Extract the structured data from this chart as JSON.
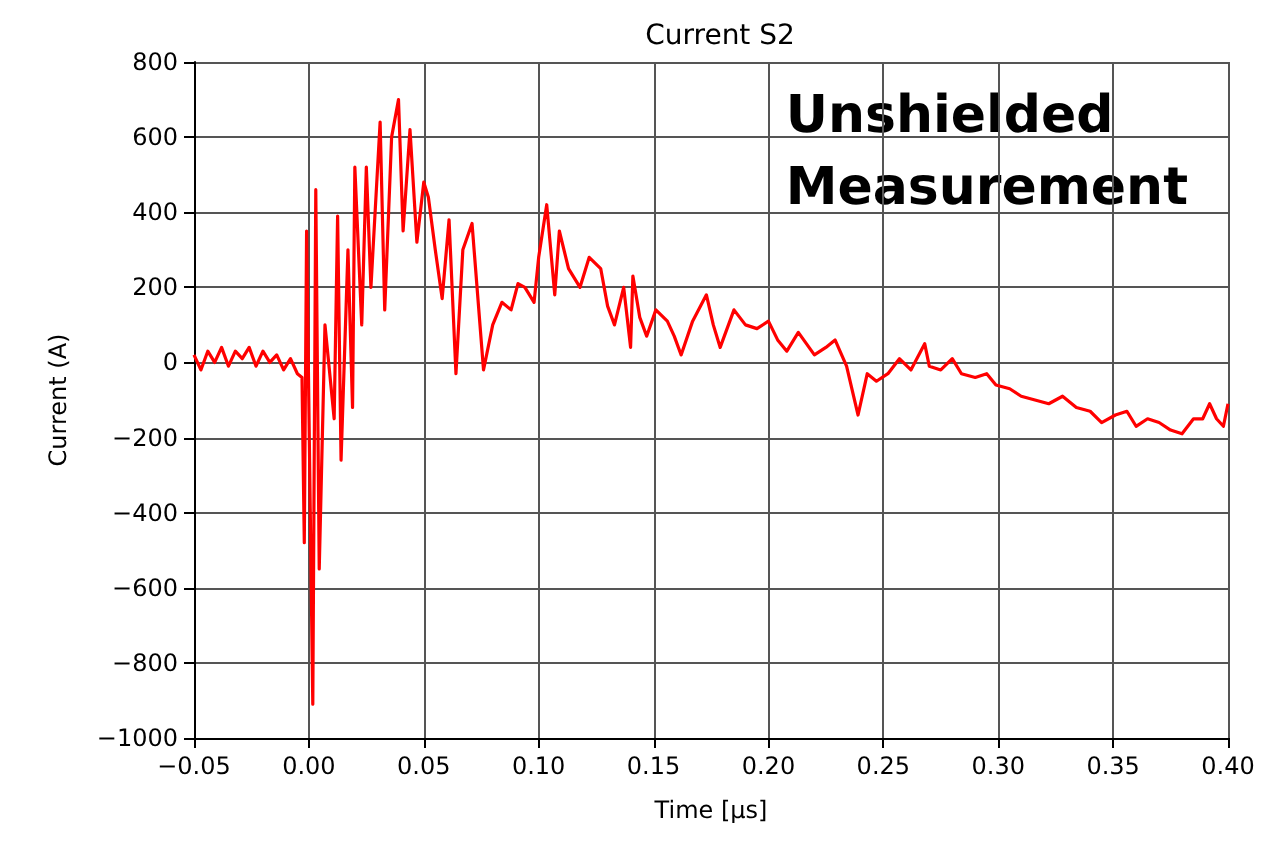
{
  "chart_data": {
    "type": "line",
    "title": "Current S2",
    "xlabel": "Time [μs]",
    "ylabel": "Current (A)",
    "annotations": [
      "Unshielded\nMeasurement"
    ],
    "grid": true,
    "marker": "none",
    "line_style": "solid",
    "xlim": [
      -0.05,
      0.4
    ],
    "ylim": [
      -1000,
      800
    ],
    "xticks": [
      {
        "value": -0.05,
        "label": "−0.05"
      },
      {
        "value": 0,
        "label": "0.00"
      },
      {
        "value": 0.05,
        "label": "0.05"
      },
      {
        "value": 0.1,
        "label": "0.10"
      },
      {
        "value": 0.15,
        "label": "0.15"
      },
      {
        "value": 0.2,
        "label": "0.20"
      },
      {
        "value": 0.25,
        "label": "0.25"
      },
      {
        "value": 0.3,
        "label": "0.30"
      },
      {
        "value": 0.35,
        "label": "0.35"
      },
      {
        "value": 0.4,
        "label": "0.40"
      }
    ],
    "yticks": [
      {
        "value": -1000,
        "label": "−1000"
      },
      {
        "value": -800,
        "label": "−800"
      },
      {
        "value": -600,
        "label": "−600"
      },
      {
        "value": -400,
        "label": "−400"
      },
      {
        "value": -200,
        "label": "−200"
      },
      0,
      200,
      400,
      600,
      800
    ],
    "series": [
      {
        "color": "#ff0000",
        "x": [
          -0.05,
          -0.047,
          -0.044,
          -0.041,
          -0.038,
          -0.035,
          -0.032,
          -0.029,
          -0.026,
          -0.023,
          -0.02,
          -0.017,
          -0.014,
          -0.011,
          -0.008,
          -0.005,
          -0.003,
          -0.002,
          -0.001,
          0.0017,
          0.003,
          0.0045,
          0.007,
          0.011,
          0.0125,
          0.014,
          0.017,
          0.019,
          0.02,
          0.023,
          0.025,
          0.027,
          0.031,
          0.033,
          0.036,
          0.039,
          0.041,
          0.044,
          0.047,
          0.05,
          0.052,
          0.055,
          0.058,
          0.061,
          0.064,
          0.067,
          0.071,
          0.076,
          0.08,
          0.084,
          0.088,
          0.091,
          0.094,
          0.098,
          0.1,
          0.1035,
          0.107,
          0.109,
          0.113,
          0.118,
          0.122,
          0.127,
          0.13,
          0.133,
          0.137,
          0.14,
          0.141,
          0.144,
          0.147,
          0.151,
          0.156,
          0.159,
          0.162,
          0.167,
          0.173,
          0.176,
          0.179,
          0.185,
          0.19,
          0.195,
          0.2,
          0.204,
          0.208,
          0.213,
          0.22,
          0.225,
          0.229,
          0.234,
          0.239,
          0.243,
          0.247,
          0.252,
          0.257,
          0.262,
          0.268,
          0.27,
          0.275,
          0.28,
          0.284,
          0.29,
          0.295,
          0.299,
          0.305,
          0.31,
          0.316,
          0.322,
          0.328,
          0.334,
          0.34,
          0.345,
          0.351,
          0.356,
          0.36,
          0.365,
          0.37,
          0.375,
          0.38,
          0.385,
          0.389,
          0.392,
          0.395,
          0.398,
          0.4
        ],
        "values": [
          20,
          -20,
          30,
          0,
          40,
          -10,
          30,
          10,
          40,
          -10,
          30,
          0,
          20,
          -20,
          10,
          -30,
          -40,
          -480,
          350,
          -910,
          460,
          -550,
          100,
          -150,
          390,
          -260,
          300,
          -120,
          520,
          100,
          520,
          200,
          640,
          140,
          600,
          700,
          350,
          620,
          320,
          480,
          440,
          300,
          170,
          380,
          -30,
          300,
          370,
          -20,
          100,
          160,
          140,
          210,
          200,
          160,
          280,
          420,
          180,
          350,
          250,
          200,
          280,
          250,
          150,
          100,
          200,
          40,
          230,
          120,
          70,
          140,
          110,
          70,
          20,
          110,
          180,
          100,
          40,
          140,
          100,
          90,
          110,
          60,
          30,
          80,
          20,
          40,
          60,
          -10,
          -140,
          -30,
          -50,
          -30,
          10,
          -20,
          50,
          -10,
          -20,
          10,
          -30,
          -40,
          -30,
          -60,
          -70,
          -90,
          -100,
          -110,
          -90,
          -120,
          -130,
          -160,
          -140,
          -130,
          -170,
          -150,
          -160,
          -180,
          -190,
          -150,
          -150,
          -110,
          -150,
          -170,
          -110
        ]
      }
    ]
  }
}
